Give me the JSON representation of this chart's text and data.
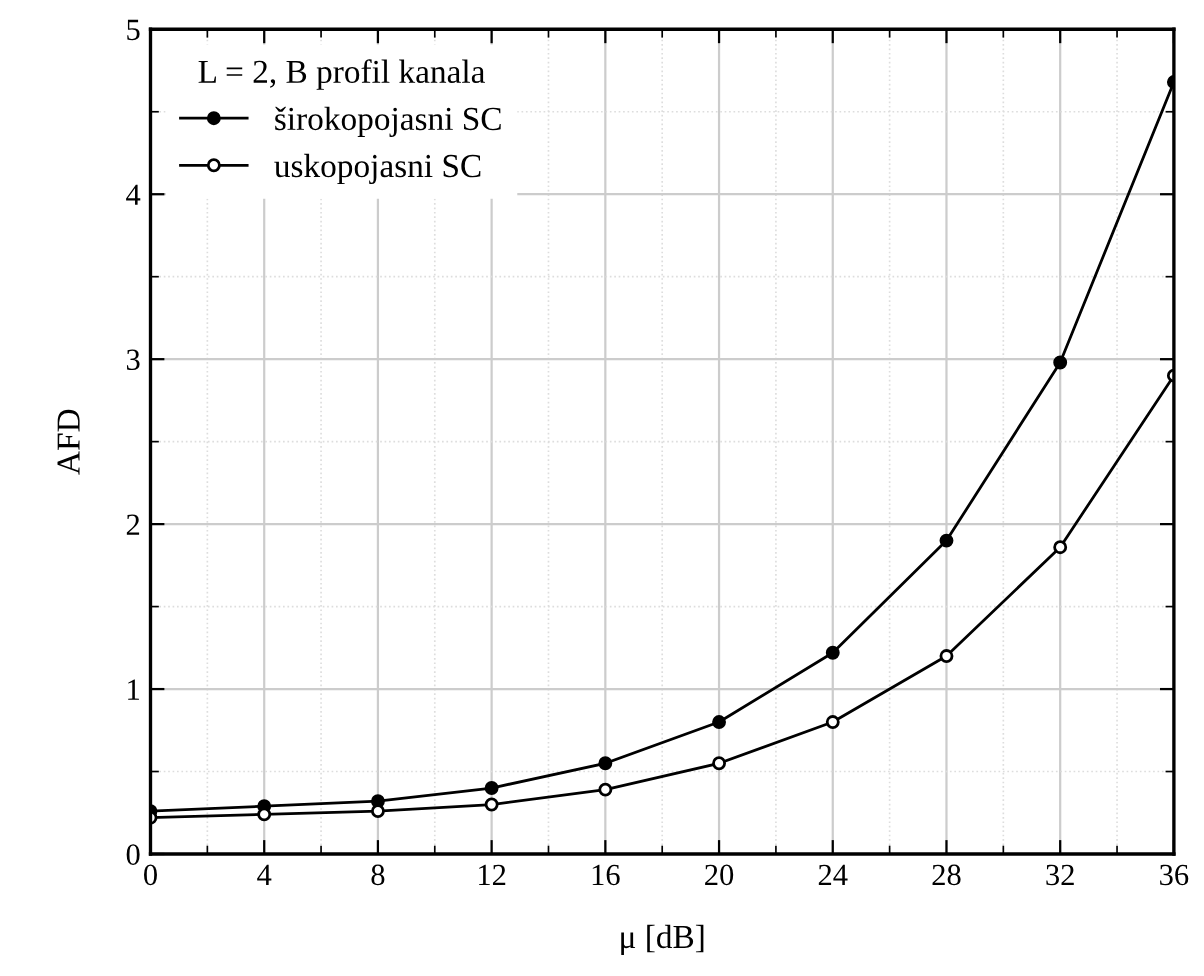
{
  "chart_data": {
    "type": "line",
    "xlabel": "μ [dB]",
    "ylabel": "AFD",
    "legend_title": "L = 2, B profil kanala",
    "x": [
      0,
      4,
      8,
      12,
      16,
      20,
      24,
      28,
      32,
      36
    ],
    "series": [
      {
        "name": "širokopojasni SC",
        "color": "#000000",
        "marker": "circle",
        "values": [
          0.26,
          0.29,
          0.32,
          0.4,
          0.55,
          0.8,
          1.22,
          1.9,
          2.98,
          4.68
        ]
      },
      {
        "name": "uskopojasni SC",
        "color": "#000000",
        "marker": "open circle",
        "values": [
          0.22,
          0.24,
          0.26,
          0.3,
          0.39,
          0.55,
          0.8,
          1.2,
          1.86,
          2.9
        ]
      }
    ],
    "xlim": [
      0,
      36
    ],
    "ylim": [
      0,
      5
    ],
    "xticks": [
      0,
      4,
      8,
      12,
      16,
      20,
      24,
      28,
      32,
      36
    ],
    "yticks": [
      0,
      1,
      2,
      3,
      4,
      5
    ],
    "grid": true,
    "legend": "top left",
    "line_style": "solid"
  }
}
